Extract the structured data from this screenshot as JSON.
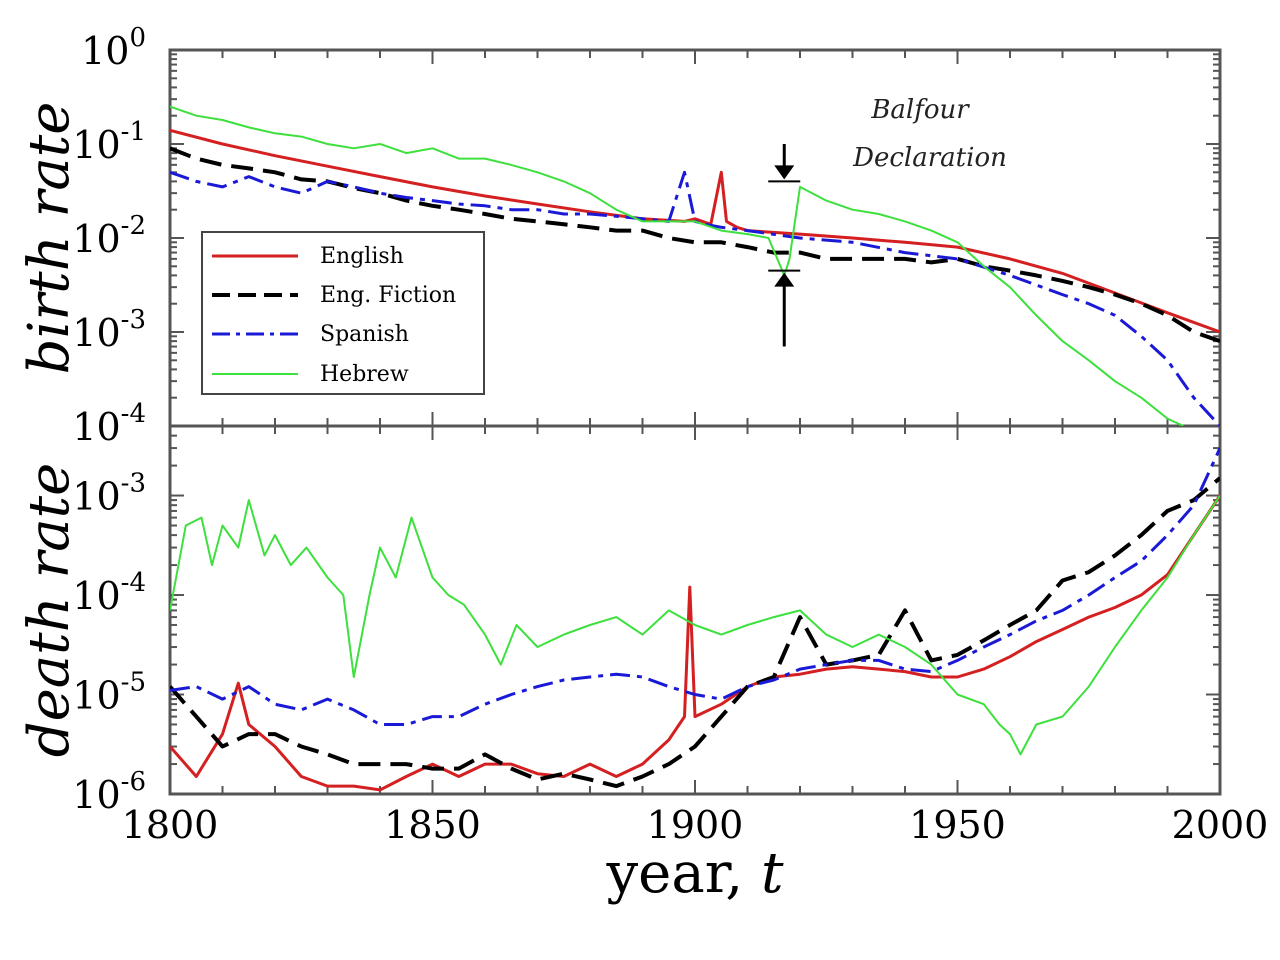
{
  "chart_data": [
    {
      "panel": "top",
      "type": "line",
      "ylabel": "birth rate",
      "yscale": "log",
      "ylim": [
        0.0001,
        1
      ],
      "yticks": [
        {
          "value": 1,
          "base": "10",
          "exp": "0"
        },
        {
          "value": 0.1,
          "base": "10",
          "exp": "-1"
        },
        {
          "value": 0.01,
          "base": "10",
          "exp": "-2"
        },
        {
          "value": 0.001,
          "base": "10",
          "exp": "-3"
        },
        {
          "value": 0.0001,
          "base": "10",
          "exp": "-4"
        }
      ],
      "xlim": [
        1800,
        2000
      ],
      "legend": {
        "placement": "lower-left",
        "entries": [
          "English",
          "Eng. Fiction",
          "Spanish",
          "Hebrew"
        ]
      },
      "annotation": {
        "line1": "Balfour",
        "line2": "Declaration",
        "year": 1917
      },
      "series": [
        {
          "name": "English",
          "color": "#d42020",
          "dash": "solid",
          "x": [
            1800,
            1810,
            1820,
            1830,
            1840,
            1850,
            1860,
            1870,
            1880,
            1890,
            1898,
            1900,
            1903,
            1905,
            1906,
            1908,
            1910,
            1920,
            1930,
            1940,
            1950,
            1960,
            1970,
            1980,
            1990,
            2000
          ],
          "y": [
            0.14,
            0.1,
            0.075,
            0.058,
            0.045,
            0.035,
            0.028,
            0.023,
            0.019,
            0.016,
            0.015,
            0.016,
            0.014,
            0.05,
            0.015,
            0.013,
            0.012,
            0.011,
            0.01,
            0.009,
            0.008,
            0.006,
            0.0042,
            0.0026,
            0.0016,
            0.001
          ]
        },
        {
          "name": "Eng. Fiction",
          "color": "#000000",
          "dash": "long",
          "x": [
            1800,
            1805,
            1810,
            1815,
            1820,
            1825,
            1830,
            1835,
            1840,
            1845,
            1850,
            1855,
            1860,
            1865,
            1870,
            1875,
            1880,
            1885,
            1890,
            1895,
            1900,
            1905,
            1910,
            1915,
            1920,
            1925,
            1930,
            1935,
            1940,
            1945,
            1950,
            1955,
            1960,
            1965,
            1970,
            1975,
            1980,
            1985,
            1990,
            1995,
            2000
          ],
          "y": [
            0.09,
            0.07,
            0.06,
            0.055,
            0.05,
            0.042,
            0.04,
            0.034,
            0.03,
            0.025,
            0.022,
            0.02,
            0.018,
            0.016,
            0.015,
            0.014,
            0.013,
            0.012,
            0.012,
            0.01,
            0.009,
            0.009,
            0.008,
            0.007,
            0.007,
            0.006,
            0.006,
            0.006,
            0.006,
            0.0055,
            0.006,
            0.005,
            0.0045,
            0.004,
            0.0035,
            0.003,
            0.0025,
            0.002,
            0.0015,
            0.001,
            0.0008
          ]
        },
        {
          "name": "Spanish",
          "color": "#1a1ad6",
          "dash": "dashdot",
          "x": [
            1800,
            1805,
            1810,
            1815,
            1820,
            1825,
            1830,
            1835,
            1840,
            1845,
            1850,
            1855,
            1860,
            1865,
            1870,
            1875,
            1880,
            1885,
            1890,
            1895,
            1898,
            1900,
            1902,
            1905,
            1910,
            1920,
            1930,
            1940,
            1950,
            1960,
            1970,
            1975,
            1980,
            1985,
            1990,
            1995,
            2000
          ],
          "y": [
            0.05,
            0.04,
            0.035,
            0.045,
            0.035,
            0.03,
            0.04,
            0.035,
            0.03,
            0.027,
            0.025,
            0.023,
            0.022,
            0.02,
            0.02,
            0.018,
            0.018,
            0.017,
            0.016,
            0.015,
            0.05,
            0.015,
            0.014,
            0.013,
            0.012,
            0.01,
            0.009,
            0.007,
            0.006,
            0.004,
            0.0025,
            0.002,
            0.0015,
            0.0009,
            0.0005,
            0.0002,
            0.0001
          ]
        },
        {
          "name": "Hebrew",
          "color": "#3de03d",
          "dash": "solid",
          "x": [
            1800,
            1805,
            1810,
            1815,
            1820,
            1825,
            1830,
            1835,
            1840,
            1845,
            1850,
            1855,
            1860,
            1865,
            1870,
            1875,
            1880,
            1885,
            1890,
            1895,
            1900,
            1905,
            1910,
            1914,
            1917,
            1918,
            1920,
            1925,
            1930,
            1935,
            1940,
            1945,
            1950,
            1955,
            1960,
            1965,
            1970,
            1975,
            1980,
            1985,
            1990,
            1993
          ],
          "y": [
            0.25,
            0.2,
            0.18,
            0.15,
            0.13,
            0.12,
            0.1,
            0.09,
            0.1,
            0.08,
            0.09,
            0.07,
            0.07,
            0.06,
            0.05,
            0.04,
            0.03,
            0.02,
            0.015,
            0.015,
            0.015,
            0.012,
            0.011,
            0.01,
            0.004,
            0.006,
            0.035,
            0.025,
            0.02,
            0.018,
            0.015,
            0.012,
            0.009,
            0.005,
            0.003,
            0.0015,
            0.0008,
            0.0005,
            0.0003,
            0.0002,
            0.00012,
            0.0001
          ]
        }
      ]
    },
    {
      "panel": "bottom",
      "type": "line",
      "ylabel": "death rate",
      "yscale": "log",
      "ylim": [
        1e-06,
        0.005
      ],
      "yticks": [
        {
          "value": 1e-06,
          "base": "10",
          "exp": "-6"
        },
        {
          "value": 1e-05,
          "base": "10",
          "exp": "-5"
        },
        {
          "value": 0.0001,
          "base": "10",
          "exp": "-4"
        },
        {
          "value": 0.001,
          "base": "10",
          "exp": "-3"
        }
      ],
      "xlim": [
        1800,
        2000
      ],
      "xlabel": "year, t",
      "xticks": [
        1800,
        1850,
        1900,
        1950,
        2000
      ],
      "series": [
        {
          "name": "English",
          "color": "#d42020",
          "dash": "solid",
          "x": [
            1800,
            1805,
            1810,
            1813,
            1815,
            1820,
            1825,
            1830,
            1835,
            1840,
            1845,
            1850,
            1855,
            1860,
            1865,
            1870,
            1875,
            1880,
            1885,
            1890,
            1895,
            1898,
            1899,
            1900,
            1905,
            1910,
            1915,
            1920,
            1925,
            1930,
            1935,
            1940,
            1945,
            1950,
            1955,
            1960,
            1965,
            1970,
            1975,
            1980,
            1985,
            1990,
            1995,
            2000
          ],
          "y": [
            3e-06,
            1.5e-06,
            4e-06,
            1.3e-05,
            5e-06,
            3e-06,
            1.5e-06,
            1.2e-06,
            1.2e-06,
            1.1e-06,
            1.5e-06,
            2e-06,
            1.5e-06,
            2e-06,
            2e-06,
            1.6e-06,
            1.5e-06,
            2e-06,
            1.5e-06,
            2e-06,
            3.5e-06,
            6e-06,
            0.00012,
            6e-06,
            8e-06,
            1.2e-05,
            1.5e-05,
            1.6e-05,
            1.8e-05,
            1.9e-05,
            1.8e-05,
            1.7e-05,
            1.5e-05,
            1.5e-05,
            1.8e-05,
            2.4e-05,
            3.4e-05,
            4.5e-05,
            6e-05,
            7.5e-05,
            0.0001,
            0.00016,
            0.0004,
            0.001
          ]
        },
        {
          "name": "Eng. Fiction",
          "color": "#000000",
          "dash": "long",
          "x": [
            1800,
            1805,
            1810,
            1815,
            1820,
            1825,
            1830,
            1835,
            1840,
            1845,
            1850,
            1855,
            1860,
            1865,
            1870,
            1875,
            1880,
            1885,
            1890,
            1895,
            1900,
            1905,
            1910,
            1915,
            1920,
            1925,
            1930,
            1935,
            1940,
            1945,
            1950,
            1955,
            1960,
            1965,
            1970,
            1975,
            1980,
            1985,
            1990,
            1995,
            2000
          ],
          "y": [
            1.2e-05,
            6e-06,
            3e-06,
            4e-06,
            4e-06,
            3e-06,
            2.5e-06,
            2e-06,
            2e-06,
            2e-06,
            1.8e-06,
            1.8e-06,
            2.5e-06,
            1.8e-06,
            1.4e-06,
            1.6e-06,
            1.4e-06,
            1.2e-06,
            1.5e-06,
            2e-06,
            3e-06,
            6e-06,
            1.2e-05,
            1.5e-05,
            6e-05,
            2e-05,
            2.2e-05,
            2.5e-05,
            7e-05,
            2.2e-05,
            2.5e-05,
            3.5e-05,
            5e-05,
            7e-05,
            0.00014,
            0.00017,
            0.00025,
            0.0004,
            0.0007,
            0.0009,
            0.0015
          ]
        },
        {
          "name": "Spanish",
          "color": "#1a1ad6",
          "dash": "dashdot",
          "x": [
            1800,
            1805,
            1810,
            1815,
            1820,
            1825,
            1830,
            1835,
            1840,
            1845,
            1850,
            1855,
            1860,
            1865,
            1870,
            1875,
            1880,
            1885,
            1890,
            1895,
            1900,
            1905,
            1910,
            1915,
            1920,
            1925,
            1930,
            1935,
            1940,
            1945,
            1950,
            1955,
            1960,
            1965,
            1970,
            1975,
            1980,
            1985,
            1990,
            1995,
            2000
          ],
          "y": [
            1.1e-05,
            1.2e-05,
            9e-06,
            1.2e-05,
            8e-06,
            7e-06,
            9e-06,
            7e-06,
            5e-06,
            5e-06,
            6e-06,
            6e-06,
            8e-06,
            1e-05,
            1.2e-05,
            1.4e-05,
            1.5e-05,
            1.6e-05,
            1.5e-05,
            1.2e-05,
            1e-05,
            9e-06,
            1.2e-05,
            1.4e-05,
            1.8e-05,
            2e-05,
            2.2e-05,
            2.2e-05,
            1.8e-05,
            1.7e-05,
            2.2e-05,
            3e-05,
            4e-05,
            5.5e-05,
            7e-05,
            0.0001,
            0.00015,
            0.00022,
            0.0004,
            0.0008,
            0.003
          ]
        },
        {
          "name": "Hebrew",
          "color": "#3de03d",
          "dash": "solid",
          "x": [
            1800,
            1803,
            1806,
            1808,
            1810,
            1813,
            1815,
            1818,
            1820,
            1823,
            1826,
            1830,
            1833,
            1835,
            1838,
            1840,
            1843,
            1846,
            1850,
            1853,
            1856,
            1860,
            1863,
            1866,
            1870,
            1875,
            1880,
            1885,
            1890,
            1895,
            1900,
            1905,
            1910,
            1915,
            1920,
            1925,
            1930,
            1935,
            1940,
            1945,
            1950,
            1955,
            1958,
            1960,
            1962,
            1965,
            1970,
            1975,
            1980,
            1985,
            1990,
            1995,
            2000
          ],
          "y": [
            7e-05,
            0.0005,
            0.0006,
            0.0002,
            0.0005,
            0.0003,
            0.0009,
            0.00025,
            0.0004,
            0.0002,
            0.0003,
            0.00015,
            0.0001,
            1.5e-05,
            0.0001,
            0.0003,
            0.00015,
            0.0006,
            0.00015,
            0.0001,
            8e-05,
            4e-05,
            2e-05,
            5e-05,
            3e-05,
            4e-05,
            5e-05,
            6e-05,
            4e-05,
            7e-05,
            5e-05,
            4e-05,
            5e-05,
            6e-05,
            7e-05,
            4e-05,
            3e-05,
            4e-05,
            3e-05,
            2e-05,
            1e-05,
            8e-06,
            5e-06,
            4e-06,
            2.5e-06,
            5e-06,
            6e-06,
            1.2e-05,
            3e-05,
            7e-05,
            0.00015,
            0.0004,
            0.001
          ]
        }
      ]
    }
  ],
  "axes": {
    "xlabel_text": "year, ",
    "xlabel_var": "t",
    "xtick_labels": [
      "1800",
      "1850",
      "1900",
      "1950",
      "2000"
    ]
  }
}
